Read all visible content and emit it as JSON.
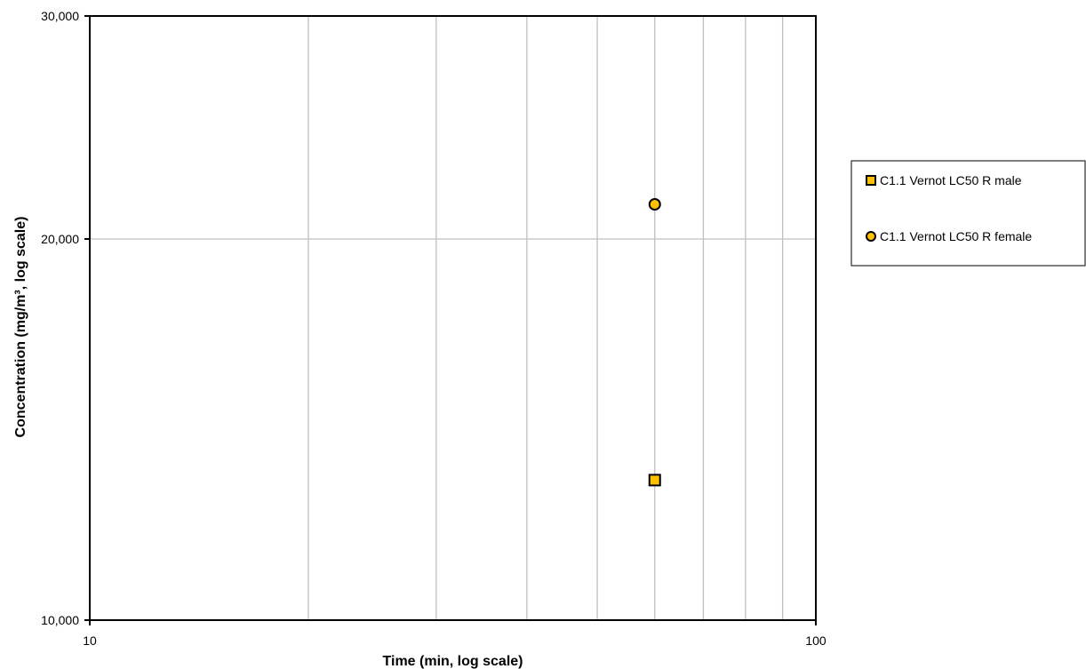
{
  "chart_data": {
    "type": "scatter",
    "title": "",
    "xlabel": "Time (min, log scale)",
    "ylabel": "Concentration (mg/m³, log scale)",
    "xscale": "log",
    "yscale": "log",
    "xlim": [
      10,
      100
    ],
    "ylim": [
      10000,
      30000
    ],
    "x_tick_labels": [
      "10",
      "100"
    ],
    "y_tick_labels": [
      "10,000",
      "20,000",
      "30,000"
    ],
    "grid": true,
    "legend_position": "right",
    "series": [
      {
        "name": "C1.1 Vernot LC50 R male",
        "marker": "square",
        "color": "#FFC000",
        "points": [
          {
            "x": 60,
            "y": 12900
          }
        ]
      },
      {
        "name": "C1.1 Vernot LC50 R female",
        "marker": "circle",
        "color": "#FFC000",
        "points": [
          {
            "x": 60,
            "y": 21300
          }
        ]
      }
    ]
  }
}
